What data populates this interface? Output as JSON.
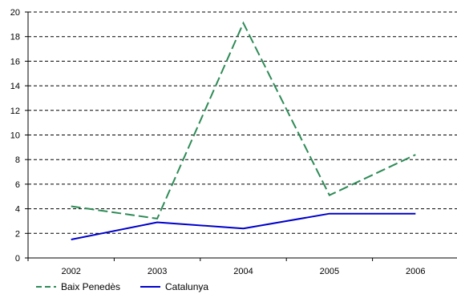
{
  "chart_data": {
    "type": "line",
    "categories": [
      "2002",
      "2003",
      "2004",
      "2005",
      "2006"
    ],
    "ylim": [
      0,
      20
    ],
    "yticks": [
      0,
      2,
      4,
      6,
      8,
      10,
      12,
      14,
      16,
      18,
      20
    ],
    "ytick_labels": [
      "0",
      "2",
      "4",
      "6",
      "8",
      "10",
      "12",
      "14",
      "16",
      "18",
      "20"
    ],
    "grid": "horizontal dashed",
    "legend_position": "bottom-left",
    "series": [
      {
        "name": "Baix Penedès",
        "values": [
          4.2,
          3.2,
          19.1,
          5.1,
          8.4
        ],
        "color": "#2e8b57",
        "style": "dashed"
      },
      {
        "name": "Catalunya",
        "values": [
          1.5,
          2.9,
          2.4,
          3.6,
          3.6
        ],
        "color": "#0000cc",
        "style": "solid"
      }
    ]
  }
}
